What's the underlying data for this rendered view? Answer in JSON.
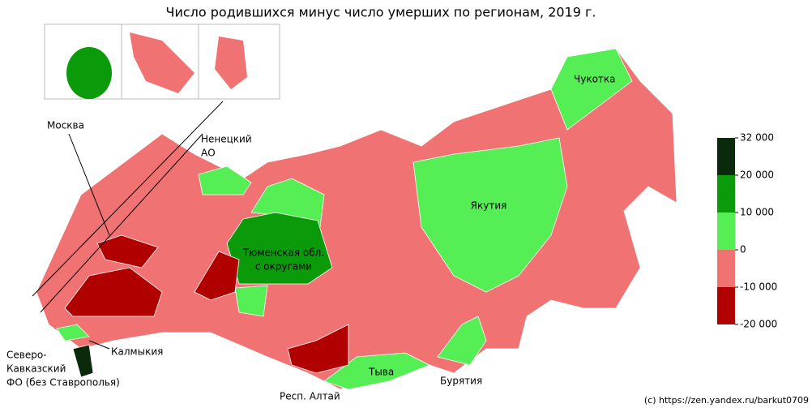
{
  "title": "Число родившихся минус число умерших по регионам, 2019 г.",
  "labels": {
    "moscow": [
      "Москва"
    ],
    "nenets": [
      "Ненецкий",
      "АО"
    ],
    "chukotka": [
      "Чукотка"
    ],
    "yakutia": [
      "Якутия"
    ],
    "tyumen": [
      "Тюменская обл.",
      "с округами"
    ],
    "caucasus": [
      "Северо-",
      "Кавказский",
      "ФО (без Ставрополья)"
    ],
    "kalmykia": [
      "Калмыкия"
    ],
    "altai": [
      "Респ. Алтай"
    ],
    "tyva": [
      "Тыва"
    ],
    "buryatia": [
      "Бурятия"
    ]
  },
  "legend": {
    "ticks": [
      {
        "value": 32000,
        "label": "32 000"
      },
      {
        "value": 20000,
        "label": "20 000"
      },
      {
        "value": 10000,
        "label": "10 000"
      },
      0,
      {
        "value": -10000,
        "label": "-10 000"
      },
      {
        "value": -20000,
        "label": "-20 000"
      }
    ],
    "colors": [
      "#0b2a0b",
      "#0a9a0a",
      "#55ee55",
      "#f07272",
      "#b00000"
    ]
  },
  "credit": "(c) https://zen.yandex.ru/barkut0709"
}
